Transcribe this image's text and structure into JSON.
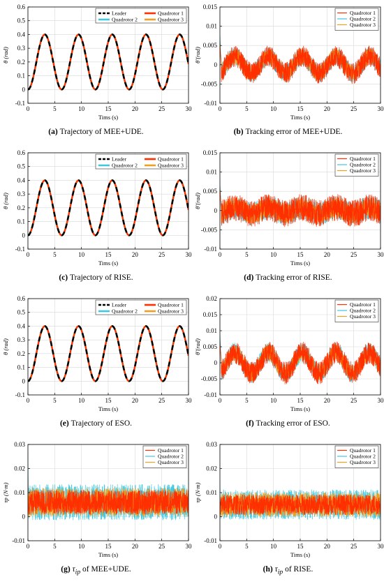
{
  "colors": {
    "leader": "#000000",
    "quadrotor_1": "#ff3000",
    "quadrotor_2": "#40c8e0",
    "quadrotor_3": "#f0a020"
  },
  "chart_data": [
    {
      "id": "a",
      "type": "line",
      "caption_label": "(a)",
      "caption_text": "Trajectory of MEE+UDE.",
      "xlabel": "Tims (s)",
      "ylabel": "θ (rad)",
      "xlim": [
        0,
        30
      ],
      "ylim": [
        -0.1,
        0.6
      ],
      "xticks": [
        "0",
        "5",
        "10",
        "15",
        "20",
        "25",
        "30"
      ],
      "yticks": [
        "-0.1",
        "0",
        "0.1",
        "0.2",
        "0.3",
        "0.4",
        "0.5",
        "0.6"
      ],
      "grid": true,
      "legend_position": "top-right",
      "legend_columns": 2,
      "signal": {
        "kind": "sinusoid",
        "offset": 0.2,
        "amplitude": 0.2,
        "period_s": 6.3,
        "min_at_s": 0
      },
      "series": [
        {
          "name": "Leader",
          "color_key": "leader",
          "style": "dashed"
        },
        {
          "name": "Quadrotor 1",
          "color_key": "quadrotor_1",
          "style": "solid"
        },
        {
          "name": "Quadrotor 2",
          "color_key": "quadrotor_2",
          "style": "solid"
        },
        {
          "name": "Quadrotor 3",
          "color_key": "quadrotor_3",
          "style": "solid"
        }
      ]
    },
    {
      "id": "b",
      "type": "line",
      "caption_label": "(b)",
      "caption_text": "Tracking error of MEE+UDE.",
      "xlabel": "Tims (s)",
      "ylabel": "θ̃ (rad)",
      "xlim": [
        0,
        30
      ],
      "ylim": [
        -0.01,
        0.015
      ],
      "xticks": [
        "0",
        "5",
        "10",
        "15",
        "20",
        "25",
        "30"
      ],
      "yticks": [
        "-0.01",
        "-0.005",
        "0",
        "0.005",
        "0.01",
        "0.015"
      ],
      "grid": true,
      "legend_position": "top-right",
      "legend_columns": 1,
      "signal": {
        "kind": "noisy-oscillation",
        "center": 0,
        "oscillation_amplitude": 0.0022,
        "noise_amplitude": 0.0028,
        "period_s": 6.3,
        "initial_peak": 0.0075
      },
      "series": [
        {
          "name": "Quadrotor 1",
          "color_key": "quadrotor_1"
        },
        {
          "name": "Quadrotor 2",
          "color_key": "quadrotor_2"
        },
        {
          "name": "Quadrotor 3",
          "color_key": "quadrotor_3"
        }
      ]
    },
    {
      "id": "c",
      "type": "line",
      "caption_label": "(c)",
      "caption_text": "Trajectory of RISE.",
      "xlabel": "Tims (s)",
      "ylabel": "θ (rad)",
      "xlim": [
        0,
        30
      ],
      "ylim": [
        -0.1,
        0.6
      ],
      "xticks": [
        "0",
        "5",
        "10",
        "15",
        "20",
        "25",
        "30"
      ],
      "yticks": [
        "-0.1",
        "0",
        "0.1",
        "0.2",
        "0.3",
        "0.4",
        "0.5",
        "0.6"
      ],
      "grid": true,
      "legend_position": "top-right",
      "legend_columns": 2,
      "signal": {
        "kind": "sinusoid",
        "offset": 0.2,
        "amplitude": 0.2,
        "period_s": 6.3,
        "min_at_s": 0
      },
      "series": [
        {
          "name": "Leader",
          "color_key": "leader",
          "style": "dashed"
        },
        {
          "name": "Quadrotor 1",
          "color_key": "quadrotor_1",
          "style": "solid"
        },
        {
          "name": "Quadrotor 2",
          "color_key": "quadrotor_2",
          "style": "solid"
        },
        {
          "name": "Quadrotor 3",
          "color_key": "quadrotor_3",
          "style": "solid"
        }
      ]
    },
    {
      "id": "d",
      "type": "line",
      "caption_label": "(d)",
      "caption_text": "Tracking error of RISE.",
      "xlabel": "Tims (s)",
      "ylabel": "θ̃ (rad)",
      "xlim": [
        0,
        30
      ],
      "ylim": [
        -0.01,
        0.015
      ],
      "xticks": [
        "0",
        "5",
        "10",
        "15",
        "20",
        "25",
        "30"
      ],
      "yticks": [
        "-0.01",
        "-0.005",
        "0",
        "0.005",
        "0.01",
        "0.015"
      ],
      "grid": true,
      "legend_position": "top-right",
      "legend_columns": 1,
      "signal": {
        "kind": "noisy-oscillation",
        "center": 0,
        "oscillation_amplitude": 0.0008,
        "noise_amplitude": 0.0035,
        "period_s": 6.3,
        "initial_peak": 0.0075
      },
      "series": [
        {
          "name": "Quadrotor 1",
          "color_key": "quadrotor_1"
        },
        {
          "name": "Quadrotor 2",
          "color_key": "quadrotor_2"
        },
        {
          "name": "Quadrotor 3",
          "color_key": "quadrotor_3"
        }
      ]
    },
    {
      "id": "e",
      "type": "line",
      "caption_label": "(e)",
      "caption_text": "Trajectory of ESO.",
      "xlabel": "Tims (s)",
      "ylabel": "θ (rad)",
      "xlim": [
        0,
        30
      ],
      "ylim": [
        -0.1,
        0.6
      ],
      "xticks": [
        "0",
        "5",
        "10",
        "15",
        "20",
        "25",
        "30"
      ],
      "yticks": [
        "-0.1",
        "0",
        "0.1",
        "0.2",
        "0.3",
        "0.4",
        "0.5",
        "0.6"
      ],
      "grid": true,
      "legend_position": "top-right",
      "legend_columns": 2,
      "signal": {
        "kind": "sinusoid",
        "offset": 0.2,
        "amplitude": 0.2,
        "period_s": 6.3,
        "min_at_s": 0
      },
      "series": [
        {
          "name": "Leader",
          "color_key": "leader",
          "style": "dashed"
        },
        {
          "name": "Quadrotor 1",
          "color_key": "quadrotor_1",
          "style": "solid"
        },
        {
          "name": "Quadrotor 2",
          "color_key": "quadrotor_2",
          "style": "solid"
        },
        {
          "name": "Quadrotor 3",
          "color_key": "quadrotor_3",
          "style": "solid"
        }
      ]
    },
    {
      "id": "f",
      "type": "line",
      "caption_label": "(f)",
      "caption_text": "Tracking error of ESO.",
      "xlabel": "Tims (s)",
      "ylabel": "θ̃ (rad)",
      "xlim": [
        0,
        30
      ],
      "ylim": [
        -0.01,
        0.02
      ],
      "xticks": [
        "0",
        "5",
        "10",
        "15",
        "20",
        "25",
        "30"
      ],
      "yticks": [
        "-0.01",
        "-0.005",
        "0",
        "0.005",
        "0.01",
        "0.015",
        "0.02"
      ],
      "grid": true,
      "legend_position": "top-right",
      "legend_columns": 1,
      "signal": {
        "kind": "noisy-oscillation",
        "center": 0,
        "oscillation_amplitude": 0.0032,
        "noise_amplitude": 0.0035,
        "period_s": 6.3,
        "initial_peak": 0.009
      },
      "series": [
        {
          "name": "Quadrotor 1",
          "color_key": "quadrotor_1"
        },
        {
          "name": "Quadrotor 2",
          "color_key": "quadrotor_2"
        },
        {
          "name": "Quadrotor 3",
          "color_key": "quadrotor_3"
        }
      ]
    },
    {
      "id": "g",
      "type": "line",
      "caption_label": "(g)",
      "caption_math": "τ",
      "caption_sub": "ip",
      "caption_text": " of MEE+UDE.",
      "xlabel": "Tims (s)",
      "ylabel": "τp (N·m)",
      "xlim": [
        0,
        30
      ],
      "ylim": [
        -0.01,
        0.03
      ],
      "xticks": [
        "0",
        "5",
        "10",
        "15",
        "20",
        "25",
        "30"
      ],
      "yticks": [
        "-0.01",
        "0",
        "0.01",
        "0.02",
        "0.03"
      ],
      "grid": true,
      "legend_position": "top-right",
      "legend_columns": 1,
      "signal": {
        "kind": "band",
        "center": 0.006,
        "half_width": 0.006,
        "spike": 0.027
      },
      "series": [
        {
          "name": "Quadrotor 1",
          "color_key": "quadrotor_1"
        },
        {
          "name": "Quadrotor 2",
          "color_key": "quadrotor_2"
        },
        {
          "name": "Quadrotor 3",
          "color_key": "quadrotor_3"
        }
      ]
    },
    {
      "id": "h",
      "type": "line",
      "caption_label": "(h)",
      "caption_math": "τ",
      "caption_sub": "ip",
      "caption_text": " of RISE.",
      "xlabel": "Tims (s)",
      "ylabel": "τp (N·m)",
      "xlim": [
        0,
        30
      ],
      "ylim": [
        -0.01,
        0.03
      ],
      "xticks": [
        "0",
        "5",
        "10",
        "15",
        "20",
        "25",
        "30"
      ],
      "yticks": [
        "-0.01",
        "0",
        "0.01",
        "0.02",
        "0.03"
      ],
      "grid": true,
      "legend_position": "top-right",
      "legend_columns": 1,
      "signal": {
        "kind": "band",
        "center": 0.005,
        "half_width": 0.005,
        "spike": 0.015
      },
      "series": [
        {
          "name": "Quadrotor 1",
          "color_key": "quadrotor_1"
        },
        {
          "name": "Quadrotor 2",
          "color_key": "quadrotor_2"
        },
        {
          "name": "Quadrotor 3",
          "color_key": "quadrotor_3"
        }
      ]
    }
  ]
}
